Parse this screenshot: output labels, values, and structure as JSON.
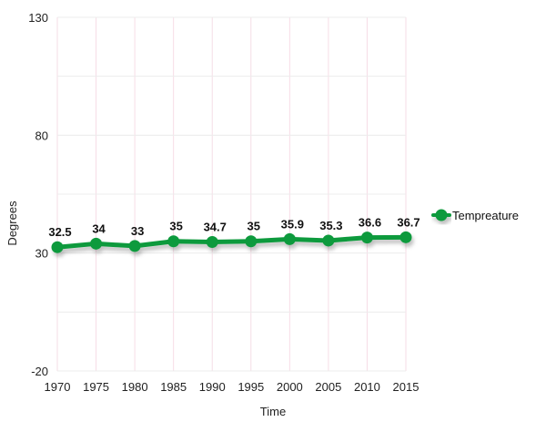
{
  "chart_data": {
    "type": "line",
    "title": "",
    "xlabel": "Time",
    "ylabel": "Degrees",
    "x": [
      "1970",
      "1975",
      "1980",
      "1985",
      "1990",
      "1995",
      "2000",
      "2005",
      "2010",
      "2015"
    ],
    "y_ticks": [
      "130",
      "80",
      "30",
      "-20"
    ],
    "ylim": [
      -20,
      130
    ],
    "grid": true,
    "legend_position": "right",
    "series": [
      {
        "name": "Tempreature",
        "values": [
          32.5,
          34,
          33,
          35,
          34.7,
          35,
          35.9,
          35.3,
          36.6,
          36.7
        ],
        "labels": [
          "32.5",
          "34",
          "33",
          "35",
          "34.7",
          "35",
          "35.9",
          "35.3",
          "36.6",
          "36.7"
        ],
        "color": "#0e9a3c"
      }
    ]
  }
}
